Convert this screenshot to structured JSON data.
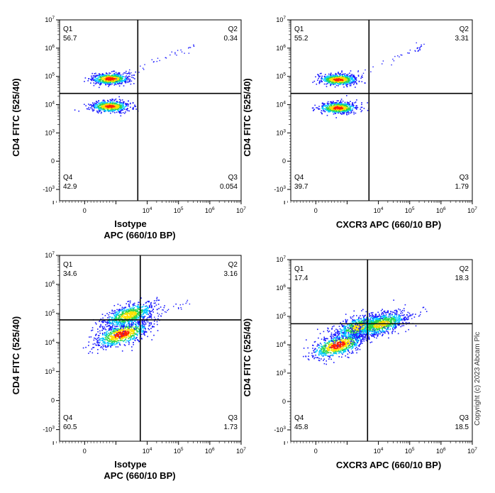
{
  "chart_data": [
    {
      "type": "scatter",
      "xlabel": "Isotype\nAPC  (660/10 BP)",
      "ylabel": "CD4 FITC (525/40)",
      "x_scale": "biexponential",
      "y_scale": "biexponential",
      "x_ticks": [
        "0",
        "10^4",
        "10^5",
        "10^6",
        "10^7"
      ],
      "y_ticks": [
        "-10^3",
        "0",
        "10^3",
        "10^4",
        "10^5",
        "10^6",
        "10^7"
      ],
      "gate": {
        "x": 5000,
        "y": 25000
      },
      "quadrants": [
        {
          "label": "Q1",
          "value": "56.7"
        },
        {
          "label": "Q2",
          "value": "0.34"
        },
        {
          "label": "Q3",
          "value": "0.054"
        },
        {
          "label": "Q4",
          "value": "42.9"
        }
      ],
      "populations": [
        {
          "x": 800,
          "y": 85000,
          "density": "high"
        },
        {
          "x": 800,
          "y": 9000,
          "density": "high"
        }
      ]
    },
    {
      "type": "scatter",
      "xlabel": "CXCR3 APC  (660/10 BP)",
      "ylabel": "CD4 FITC (525/40)",
      "x_scale": "biexponential",
      "y_scale": "biexponential",
      "x_ticks": [
        "0",
        "10^4",
        "10^5",
        "10^6",
        "10^7"
      ],
      "y_ticks": [
        "-10^3",
        "0",
        "10^3",
        "10^4",
        "10^5",
        "10^6",
        "10^7"
      ],
      "gate": {
        "x": 5000,
        "y": 25000
      },
      "quadrants": [
        {
          "label": "Q1",
          "value": "55.2"
        },
        {
          "label": "Q2",
          "value": "3.31"
        },
        {
          "label": "Q3",
          "value": "1.79"
        },
        {
          "label": "Q4",
          "value": "39.7"
        }
      ],
      "populations": [
        {
          "x": 700,
          "y": 80000,
          "density": "high"
        },
        {
          "x": 700,
          "y": 8000,
          "density": "high"
        }
      ]
    },
    {
      "type": "scatter",
      "xlabel": "Isotype\nAPC (660/10 BP)",
      "ylabel": "CD4 FITC (525/40)",
      "x_scale": "biexponential",
      "y_scale": "biexponential",
      "x_ticks": [
        "0",
        "10^4",
        "10^5",
        "10^6",
        "10^7"
      ],
      "y_ticks": [
        "-10^3",
        "0",
        "10^3",
        "10^4",
        "10^5",
        "10^6",
        "10^7"
      ],
      "gate": {
        "x": 6000,
        "y": 60000
      },
      "quadrants": [
        {
          "label": "Q1",
          "value": "34.6"
        },
        {
          "label": "Q2",
          "value": "3.16"
        },
        {
          "label": "Q3",
          "value": "1.73"
        },
        {
          "label": "Q4",
          "value": "60.5"
        }
      ],
      "populations": [
        {
          "x": 1500,
          "y": 20000,
          "density": "high"
        },
        {
          "x": 2500,
          "y": 90000,
          "density": "medium"
        }
      ]
    },
    {
      "type": "scatter",
      "xlabel": "CXCR3 APC  (660/10 BP)",
      "ylabel": "CD4 FITC (525/40)",
      "x_scale": "biexponential",
      "y_scale": "biexponential",
      "x_ticks": [
        "0",
        "10^4",
        "10^5",
        "10^6",
        "10^7"
      ],
      "y_ticks": [
        "-10^3",
        "0",
        "10^3",
        "10^4",
        "10^5",
        "10^6",
        "10^7"
      ],
      "gate": {
        "x": 4500,
        "y": 55000
      },
      "quadrants": [
        {
          "label": "Q1",
          "value": "17.4"
        },
        {
          "label": "Q2",
          "value": "18.3"
        },
        {
          "label": "Q3",
          "value": "18.5"
        },
        {
          "label": "Q4",
          "value": "45.8"
        }
      ],
      "populations": [
        {
          "x": 700,
          "y": 10000,
          "density": "high"
        },
        {
          "x": 2500,
          "y": 45000,
          "density": "medium"
        },
        {
          "x": 12000,
          "y": 55000,
          "density": "medium"
        }
      ]
    }
  ],
  "copyright": "Copyright (c) 2023 Abcam Plc",
  "colors": {
    "axis": "#000000",
    "density_low": "#1a1aff",
    "density_mid": "#00c8ff",
    "density_midhigh": "#2dd64a",
    "density_high": "#ffe000",
    "density_peak": "#ff2000"
  }
}
